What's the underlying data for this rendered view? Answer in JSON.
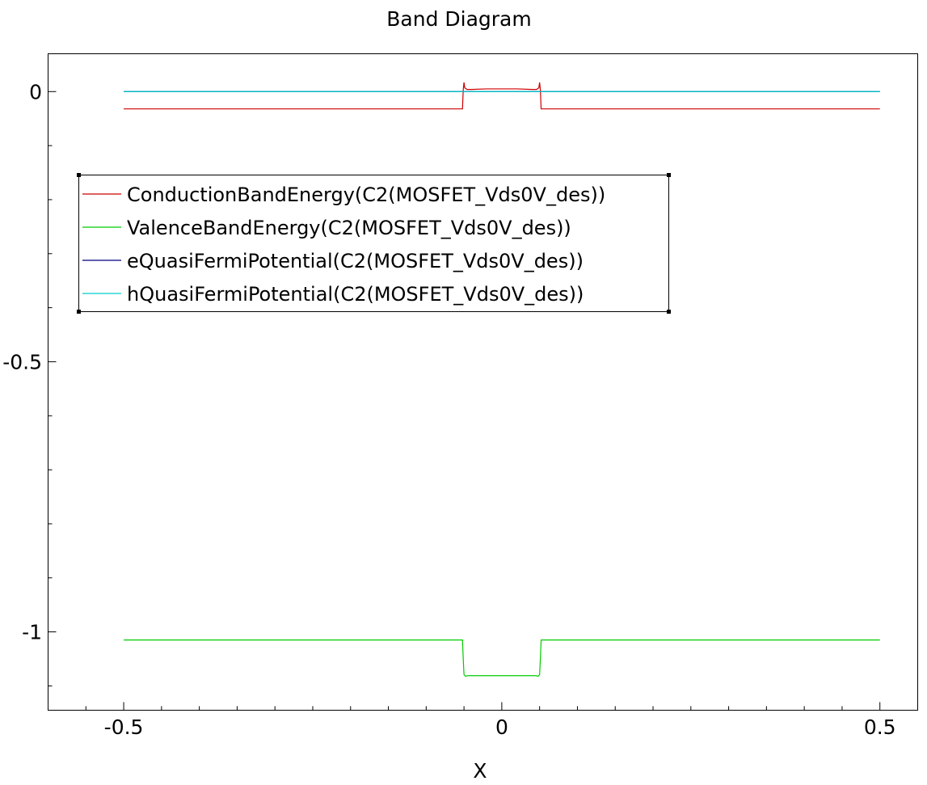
{
  "chart_data": {
    "type": "line",
    "title": "Band Diagram",
    "xlabel": "X",
    "ylabel": "",
    "xlim": [
      -0.6,
      0.55
    ],
    "ylim": [
      -1.145,
      0.07
    ],
    "x_ticks": [
      -0.5,
      0,
      0.5
    ],
    "x_tick_labels": [
      "-0.5",
      "0",
      "0.5"
    ],
    "y_ticks": [
      0,
      -0.5,
      -1
    ],
    "y_tick_labels": [
      "0",
      "-0.5",
      "-1"
    ],
    "grid": false,
    "legend_position": "top-left",
    "series": [
      {
        "name": "ConductionBandEnergy(C2(MOSFET_Vds0V_des))",
        "color": "#cc0000",
        "x": [
          -0.5,
          -0.052,
          -0.051,
          -0.05,
          -0.049,
          -0.046,
          -0.04,
          -0.02,
          0,
          0.02,
          0.04,
          0.046,
          0.049,
          0.05,
          0.051,
          0.052,
          0.5
        ],
        "y": [
          -0.032,
          -0.032,
          0.003,
          0.017,
          0.007,
          0.004,
          0.004,
          0.005,
          0.005,
          0.005,
          0.004,
          0.004,
          0.007,
          0.017,
          0.003,
          -0.032,
          -0.032
        ]
      },
      {
        "name": "ValenceBandEnergy(C2(MOSFET_Vds0V_des))",
        "color": "#00cc00",
        "x": [
          -0.5,
          -0.052,
          -0.051,
          -0.05,
          -0.048,
          -0.045,
          0,
          0.045,
          0.048,
          0.05,
          0.051,
          0.052,
          0.5
        ],
        "y": [
          -1.015,
          -1.015,
          -1.05,
          -1.079,
          -1.082,
          -1.081,
          -1.081,
          -1.081,
          -1.082,
          -1.079,
          -1.05,
          -1.015,
          -1.015
        ]
      },
      {
        "name": "eQuasiFermiPotential(C2(MOSFET_Vds0V_des))",
        "color": "#000080",
        "x": [
          -0.5,
          0.5
        ],
        "y": [
          0,
          0
        ]
      },
      {
        "name": "hQuasiFermiPotential(C2(MOSFET_Vds0V_des))",
        "color": "#00cccc",
        "x": [
          -0.5,
          0.5
        ],
        "y": [
          0,
          0
        ]
      }
    ]
  }
}
